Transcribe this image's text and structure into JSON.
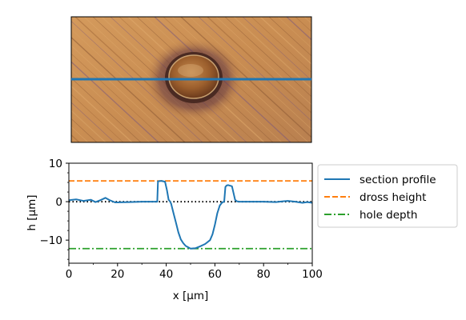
{
  "chart_data": [
    {
      "type": "image",
      "description_free": true,
      "overlay_line": {
        "color": "#1f77b4"
      }
    },
    {
      "type": "line",
      "xlabel": "x [μm]",
      "ylabel": "h [μm]",
      "xlim": [
        0,
        100
      ],
      "ylim": [
        -16,
        10
      ],
      "xticks": [
        0,
        20,
        40,
        60,
        80,
        100
      ],
      "yticks": [
        -10,
        0,
        10
      ],
      "grid": false,
      "legend_position": "outside-right",
      "series": [
        {
          "name": "section profile",
          "style": "solid",
          "color": "#1f77b4",
          "x": [
            0,
            3,
            6,
            9,
            11,
            13,
            15,
            17,
            19,
            25,
            30,
            35,
            36.3,
            36.6,
            38,
            39.5,
            40.3,
            41,
            41.5,
            42,
            43,
            44,
            45,
            46,
            47,
            48,
            50,
            52,
            54,
            56,
            58,
            59,
            60,
            61,
            62,
            63,
            63.8,
            64.3,
            64.8,
            65.5,
            67,
            68.3,
            69,
            70,
            75,
            80,
            85,
            88,
            90,
            93,
            96,
            98,
            100
          ],
          "y": [
            0.4,
            0.6,
            0.2,
            0.5,
            -0.1,
            0.4,
            1.0,
            0.3,
            -0.2,
            -0.1,
            0.0,
            0.0,
            0.0,
            5.3,
            5.4,
            5.2,
            3.0,
            0.5,
            0.1,
            -0.5,
            -3.0,
            -5.5,
            -8.0,
            -9.8,
            -10.8,
            -11.5,
            -12.2,
            -12.1,
            -11.6,
            -11.0,
            -10.0,
            -8.5,
            -6.0,
            -3.0,
            -1.0,
            -0.2,
            0.0,
            3.8,
            4.2,
            4.3,
            4.0,
            0.5,
            0.1,
            0.0,
            0.0,
            0.0,
            -0.1,
            0.1,
            0.2,
            0.0,
            -0.3,
            -0.1,
            -0.3
          ]
        },
        {
          "name": "dross height",
          "style": "dashed",
          "color": "#ff7f0e",
          "constant": 5.4
        },
        {
          "name": "hole depth",
          "style": "dashdot",
          "color": "#2ca02c",
          "constant": -12.2
        },
        {
          "name": "",
          "style": "dotted",
          "color": "#000000",
          "constant": 0
        }
      ]
    }
  ]
}
